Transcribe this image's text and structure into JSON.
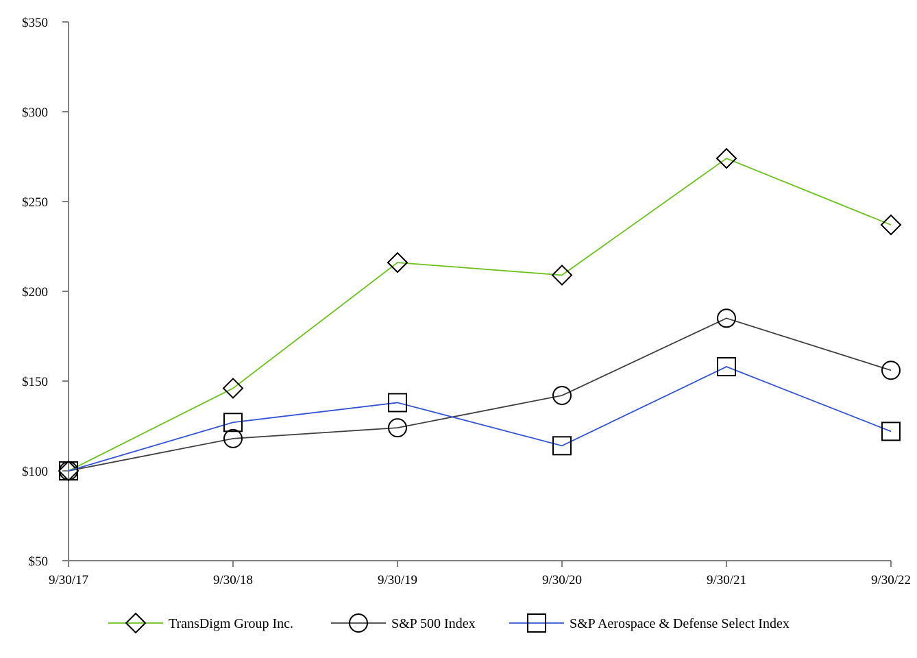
{
  "chart_data": {
    "type": "line",
    "title": "",
    "xlabel": "",
    "ylabel": "",
    "categories": [
      "9/30/17",
      "9/30/18",
      "9/30/19",
      "9/30/20",
      "9/30/21",
      "9/30/22"
    ],
    "ylim": [
      50,
      350
    ],
    "yticks": [
      50,
      100,
      150,
      200,
      250,
      300,
      350
    ],
    "ytick_labels": [
      "$50",
      "$100",
      "$150",
      "$200",
      "$250",
      "$300",
      "$350"
    ],
    "grid": false,
    "legend_position": "bottom",
    "series": [
      {
        "name": "TransDigm Group Inc.",
        "color": "#6cc11e",
        "marker": "diamond",
        "values": [
          100,
          146,
          216,
          209,
          274,
          237
        ]
      },
      {
        "name": "S&P 500 Index",
        "color": "#404040",
        "marker": "circle",
        "values": [
          100,
          118,
          124,
          142,
          185,
          156
        ]
      },
      {
        "name": "S&P Aerospace & Defense Select Index",
        "color": "#3354d4",
        "marker": "square",
        "values": [
          100,
          127,
          138,
          114,
          158,
          122
        ]
      }
    ]
  }
}
